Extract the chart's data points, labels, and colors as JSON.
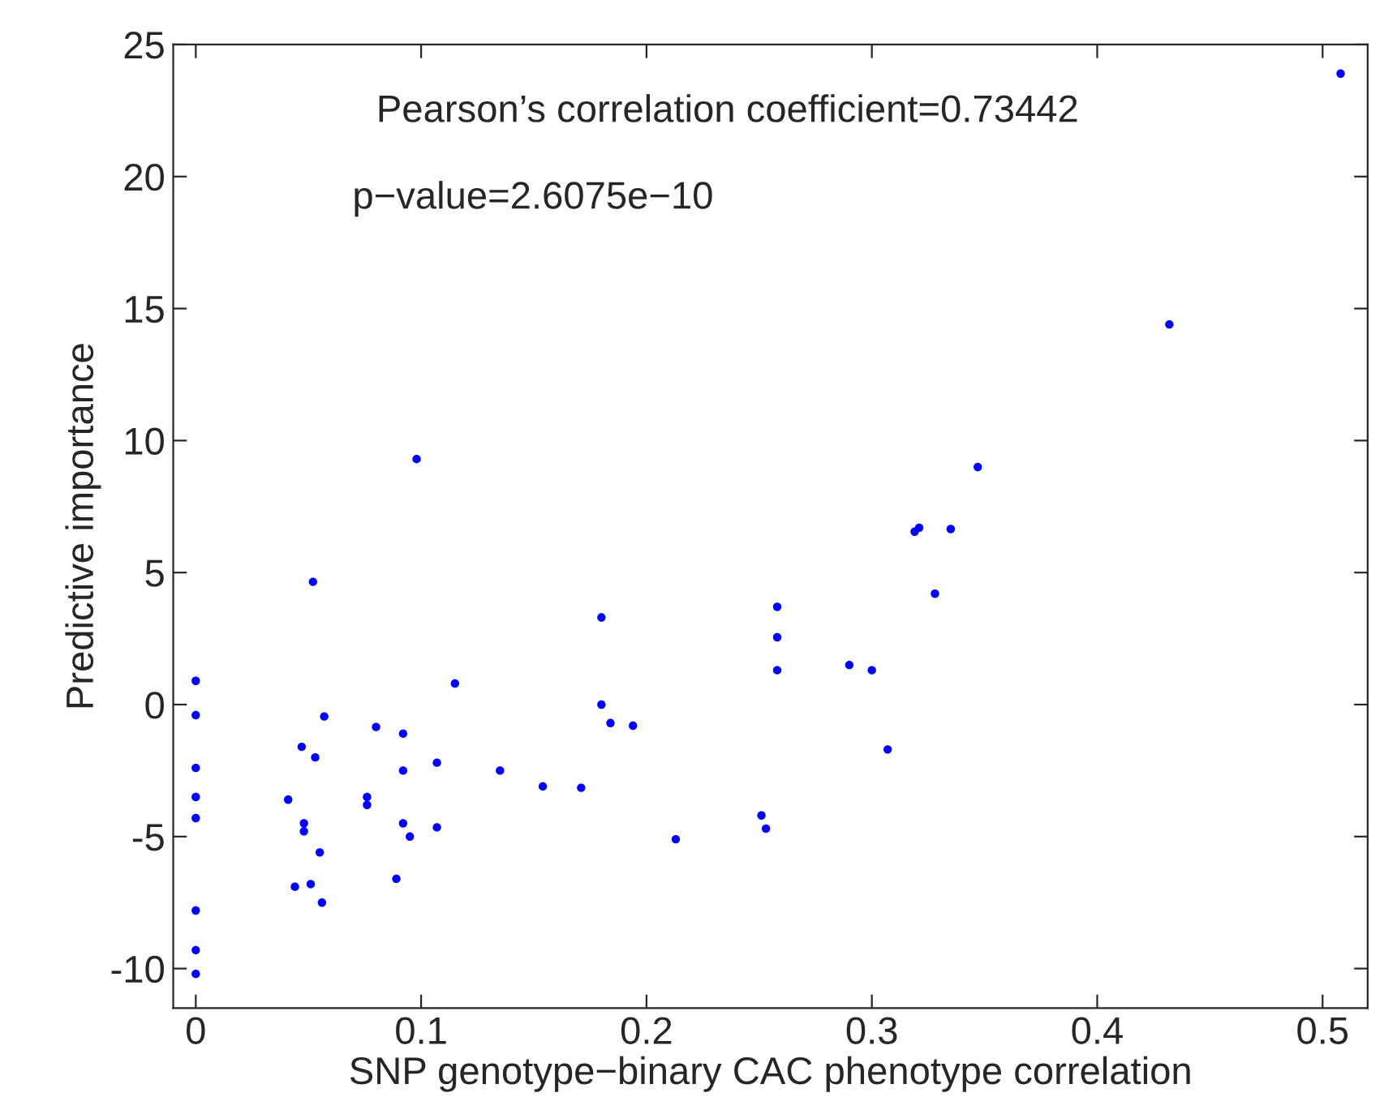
{
  "chart_data": {
    "type": "scatter",
    "xlabel": "SNP genotype−binary CAC phenotype correlation",
    "ylabel": "Predictive importance",
    "annotations": [
      "Pearson’s correlation coefficient=0.73442",
      "p−value=2.6075e−10"
    ],
    "xlim": [
      -0.01,
      0.52
    ],
    "ylim": [
      -11.5,
      25
    ],
    "xticks": [
      0,
      0.1,
      0.2,
      0.3,
      0.4,
      0.5
    ],
    "yticks": [
      -10,
      -5,
      0,
      5,
      10,
      15,
      20,
      25
    ],
    "grid": false,
    "legend": false,
    "marker": "circle",
    "series": [
      {
        "color": "#0000ff",
        "x": [
          0,
          0,
          0,
          0,
          0,
          0,
          0,
          0,
          0.052,
          0.057,
          0.047,
          0.053,
          0.041,
          0.048,
          0.048,
          0.055,
          0.044,
          0.051,
          0.056,
          0.08,
          0.076,
          0.076,
          0.092,
          0.092,
          0.092,
          0.095,
          0.089,
          0.107,
          0.107,
          0.115,
          0.135,
          0.154,
          0.171,
          0.18,
          0.18,
          0.184,
          0.194,
          0.213,
          0.251,
          0.253,
          0.258,
          0.258,
          0.258,
          0.098,
          0.29,
          0.3,
          0.307,
          0.319,
          0.321,
          0.335,
          0.328,
          0.347,
          0.432,
          0.508
        ],
        "values": [
          0.9,
          -0.4,
          -2.4,
          -3.5,
          -4.3,
          -7.8,
          -9.3,
          -10.2,
          4.65,
          -0.45,
          -1.6,
          -2.0,
          -3.6,
          -4.5,
          -4.8,
          -5.6,
          -6.9,
          -6.8,
          -7.5,
          -0.85,
          -3.5,
          -3.8,
          -1.1,
          -2.5,
          -4.5,
          -5.0,
          -6.6,
          -2.2,
          -4.65,
          0.8,
          -2.5,
          -3.1,
          -3.15,
          3.3,
          0,
          -0.7,
          -0.8,
          -5.1,
          -4.2,
          -4.7,
          3.7,
          2.55,
          1.3,
          9.3,
          1.5,
          1.3,
          -1.7,
          6.55,
          6.7,
          6.65,
          4.2,
          9.0,
          14.4,
          23.9
        ]
      }
    ]
  }
}
